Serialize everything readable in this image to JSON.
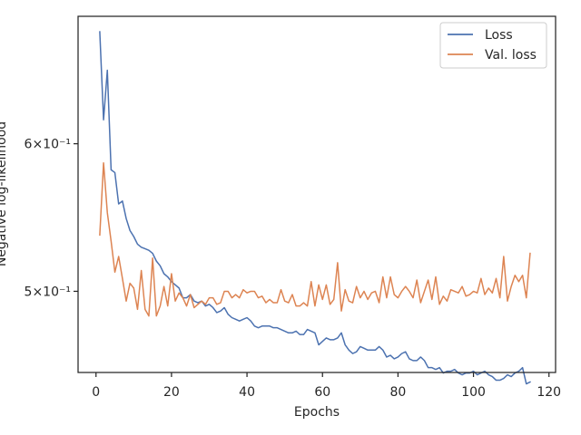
{
  "chart_data": {
    "type": "line",
    "xlabel": "Epochs",
    "ylabel": "Negative log-likelihood",
    "yscale": "log",
    "xlim": [
      -4.75,
      121.75
    ],
    "ylim": [
      0.4523,
      0.7023
    ],
    "x_ticks": [
      0,
      20,
      40,
      60,
      80,
      100,
      120
    ],
    "y_ticks": [
      {
        "value": 0.5,
        "label": "5×10⁻¹"
      },
      {
        "value": 0.6,
        "label": "6×10⁻¹"
      }
    ],
    "grid": false,
    "legend": "top-right",
    "x": [
      1,
      2,
      3,
      4,
      5,
      6,
      7,
      8,
      9,
      10,
      11,
      12,
      13,
      14,
      15,
      16,
      17,
      18,
      19,
      20,
      21,
      22,
      23,
      24,
      25,
      26,
      27,
      28,
      29,
      30,
      31,
      32,
      33,
      34,
      35,
      36,
      37,
      38,
      39,
      40,
      41,
      42,
      43,
      44,
      45,
      46,
      47,
      48,
      49,
      50,
      51,
      52,
      53,
      54,
      55,
      56,
      57,
      58,
      59,
      60,
      61,
      62,
      63,
      64,
      65,
      66,
      67,
      68,
      69,
      70,
      71,
      72,
      73,
      74,
      75,
      76,
      77,
      78,
      79,
      80,
      81,
      82,
      83,
      84,
      85,
      86,
      87,
      88,
      89,
      90,
      91,
      92,
      93,
      94,
      95,
      96,
      97,
      98,
      99,
      100,
      101,
      102,
      103,
      104,
      105,
      106,
      107,
      108,
      109,
      110,
      111,
      112,
      113,
      114,
      115
    ],
    "series": [
      {
        "name": "Loss",
        "color": "#4c72b0",
        "values": [
          0.689,
          0.618,
          0.657,
          0.581,
          0.579,
          0.557,
          0.559,
          0.547,
          0.539,
          0.535,
          0.53,
          0.528,
          0.527,
          0.526,
          0.524,
          0.519,
          0.516,
          0.511,
          0.509,
          0.506,
          0.504,
          0.502,
          0.496,
          0.496,
          0.498,
          0.494,
          0.493,
          0.494,
          0.491,
          0.492,
          0.49,
          0.487,
          0.488,
          0.49,
          0.486,
          0.484,
          0.483,
          0.482,
          0.483,
          0.484,
          0.482,
          0.479,
          0.478,
          0.479,
          0.479,
          0.479,
          0.478,
          0.478,
          0.477,
          0.476,
          0.475,
          0.475,
          0.476,
          0.474,
          0.474,
          0.477,
          0.476,
          0.475,
          0.468,
          0.47,
          0.472,
          0.471,
          0.471,
          0.472,
          0.475,
          0.468,
          0.465,
          0.463,
          0.464,
          0.467,
          0.466,
          0.465,
          0.465,
          0.465,
          0.467,
          0.465,
          0.461,
          0.462,
          0.46,
          0.461,
          0.463,
          0.464,
          0.46,
          0.459,
          0.459,
          0.461,
          0.459,
          0.455,
          0.455,
          0.454,
          0.455,
          0.452,
          0.453,
          0.453,
          0.454,
          0.452,
          0.451,
          0.452,
          0.452,
          0.453,
          0.451,
          0.452,
          0.453,
          0.451,
          0.45,
          0.448,
          0.448,
          0.449,
          0.451,
          0.45,
          0.452,
          0.453,
          0.455,
          0.446,
          0.447
        ]
      },
      {
        "name": "Val. loss",
        "color": "#dd8452",
        "values": [
          0.536,
          0.586,
          0.551,
          0.532,
          0.512,
          0.522,
          0.508,
          0.494,
          0.505,
          0.502,
          0.489,
          0.513,
          0.489,
          0.485,
          0.521,
          0.485,
          0.491,
          0.503,
          0.491,
          0.511,
          0.494,
          0.499,
          0.496,
          0.491,
          0.498,
          0.49,
          0.492,
          0.494,
          0.492,
          0.496,
          0.496,
          0.492,
          0.493,
          0.5,
          0.5,
          0.496,
          0.498,
          0.496,
          0.501,
          0.499,
          0.5,
          0.5,
          0.496,
          0.497,
          0.493,
          0.495,
          0.493,
          0.493,
          0.501,
          0.494,
          0.493,
          0.498,
          0.491,
          0.491,
          0.493,
          0.491,
          0.506,
          0.491,
          0.504,
          0.495,
          0.504,
          0.492,
          0.495,
          0.518,
          0.488,
          0.501,
          0.494,
          0.493,
          0.503,
          0.496,
          0.5,
          0.495,
          0.499,
          0.5,
          0.493,
          0.509,
          0.496,
          0.509,
          0.498,
          0.496,
          0.5,
          0.503,
          0.5,
          0.496,
          0.507,
          0.493,
          0.5,
          0.507,
          0.495,
          0.509,
          0.492,
          0.497,
          0.494,
          0.501,
          0.5,
          0.499,
          0.503,
          0.497,
          0.498,
          0.5,
          0.499,
          0.508,
          0.498,
          0.502,
          0.499,
          0.508,
          0.496,
          0.522,
          0.494,
          0.503,
          0.51,
          0.506,
          0.51,
          0.496,
          0.524
        ]
      }
    ]
  }
}
